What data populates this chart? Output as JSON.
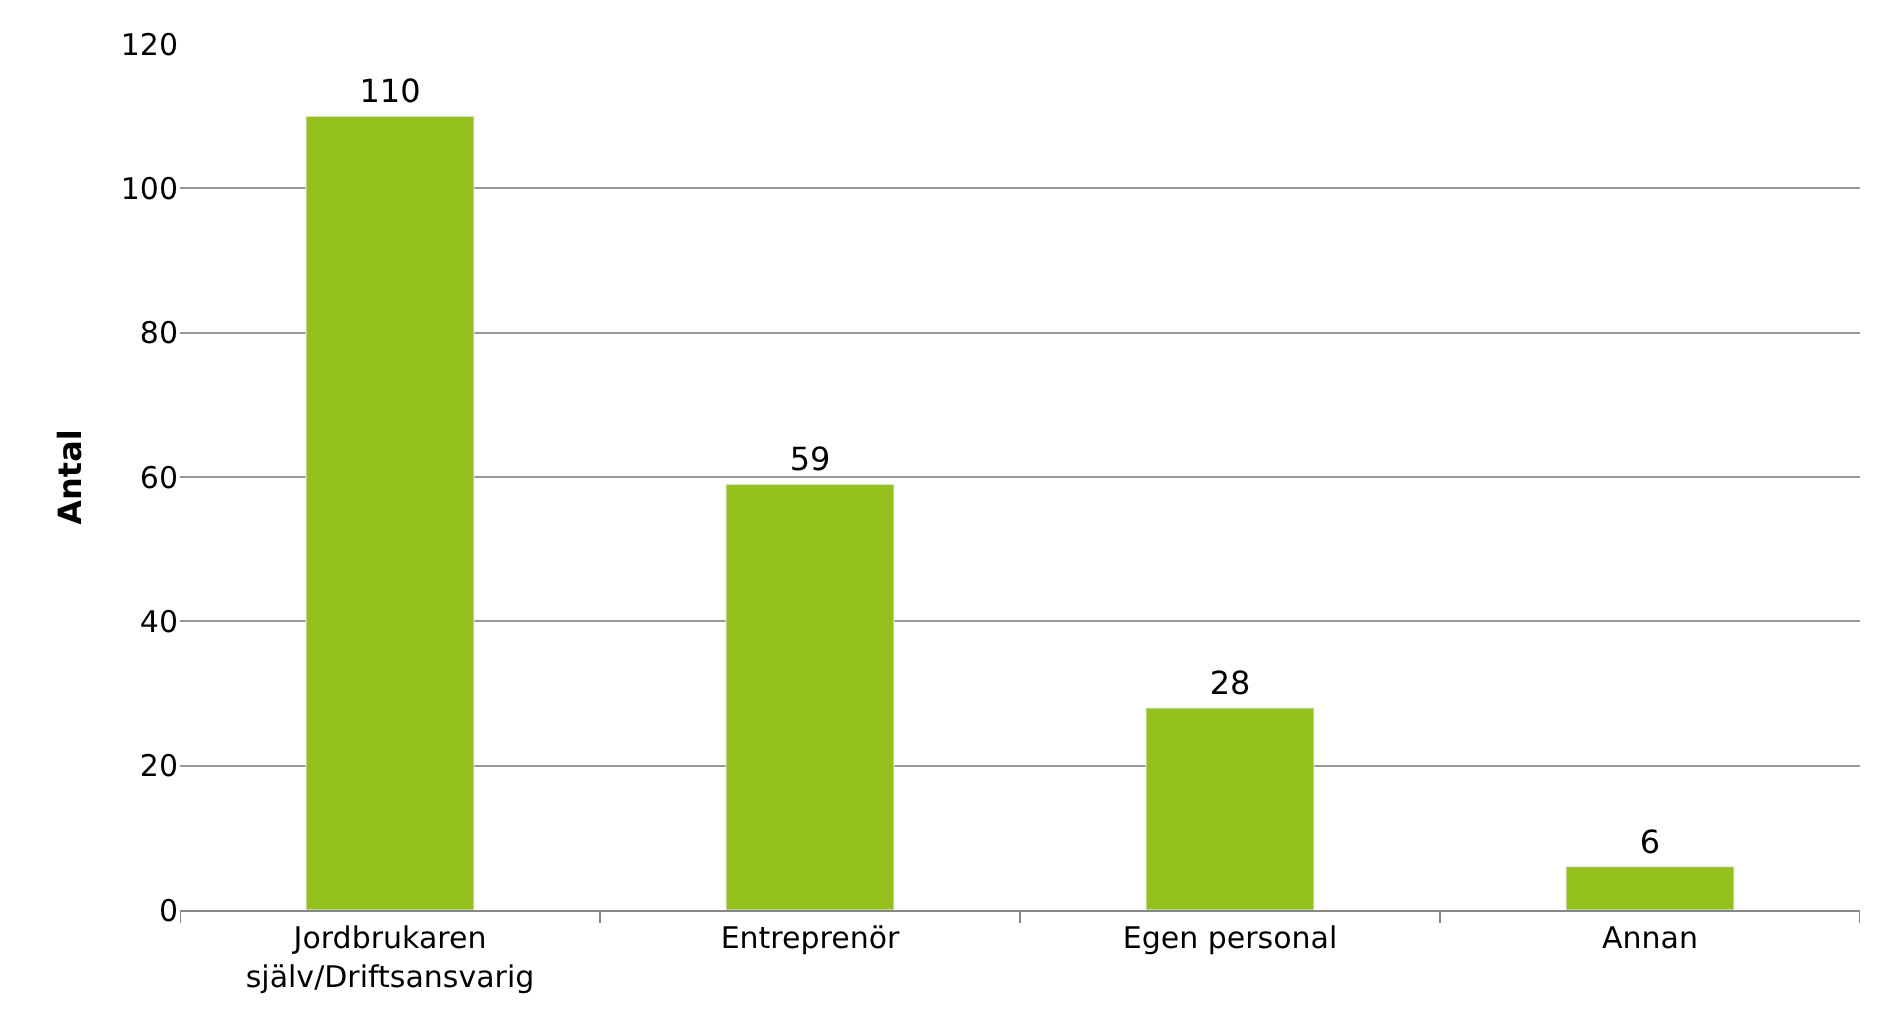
{
  "chart_data": {
    "type": "bar",
    "ylabel": "Antal",
    "categories": [
      "Jordbrukaren själv/Driftsansvarig",
      "Entreprenör",
      "Egen personal",
      "Annan"
    ],
    "values": [
      110,
      59,
      28,
      6
    ],
    "color": "#95c11f",
    "ylim": [
      0,
      120
    ],
    "yticks": [
      0,
      20,
      40,
      60,
      80,
      100,
      120
    ],
    "grid": "y",
    "data_labels": true
  }
}
